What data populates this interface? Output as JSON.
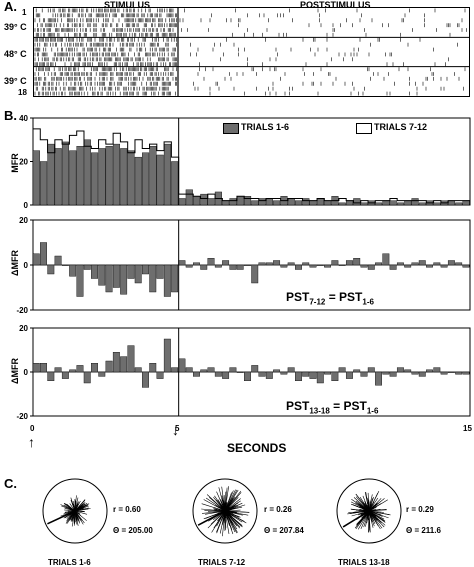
{
  "panel_a": {
    "letter": "A.",
    "stimulus_label": "STIMULUS",
    "poststimulus_label": "POSTSTIMULUS",
    "temp_labels": [
      "39° C",
      "48° C",
      "39° C"
    ],
    "trial_first": "1",
    "trial_last": "18"
  },
  "panel_b": {
    "letter": "B.",
    "xlabel": "SECONDS",
    "x_ticks": [
      "0",
      "5",
      "15"
    ],
    "legend": {
      "series1": "TRIALS 1-6",
      "series2": "TRIALS 7-12"
    }
  },
  "panel_c": {
    "letter": "C.",
    "polars": [
      {
        "label": "TRIALS 1-6",
        "r": "r = 0.60",
        "theta": "Θ = 205.00"
      },
      {
        "label": "TRIALS 7-12",
        "r": "r = 0.26",
        "theta": "Θ = 207.84"
      },
      {
        "label": "TRIALS 13-18",
        "r": "r = 0.29",
        "theta": "Θ = 211.6"
      }
    ]
  },
  "chart_data": [
    {
      "type": "bar",
      "ylabel": "MFR",
      "xlabel": "SECONDS",
      "xlim": [
        0,
        15
      ],
      "ylim": [
        0,
        40
      ],
      "y_ticks": [
        0,
        20,
        40
      ],
      "bins": 60,
      "series": [
        {
          "name": "TRIALS 1-6",
          "fill": "#6e6e6e",
          "values": [
            25,
            20,
            28,
            26,
            29,
            25,
            27,
            30,
            24,
            26,
            27,
            28,
            26,
            25,
            22,
            24,
            27,
            23,
            28,
            20,
            3,
            7,
            4,
            5,
            3,
            6,
            2,
            3,
            4,
            4,
            2,
            3,
            3,
            2,
            4,
            3,
            2,
            3,
            2,
            3,
            2,
            4,
            1,
            2,
            3,
            1,
            2,
            1,
            2,
            2,
            1,
            2,
            3,
            1,
            2,
            1,
            2,
            2,
            1,
            2
          ]
        },
        {
          "name": "TRIALS 7-12",
          "fill": "#ffffff",
          "values": [
            35,
            30,
            24,
            30,
            28,
            32,
            34,
            27,
            26,
            30,
            28,
            33,
            29,
            24,
            30,
            26,
            28,
            25,
            29,
            22,
            5,
            5,
            4,
            3,
            5,
            3,
            2,
            2,
            4,
            3,
            3,
            2,
            3,
            3,
            2,
            3,
            3,
            2,
            2,
            3,
            2,
            2,
            3,
            2,
            1,
            2,
            1,
            2,
            2,
            3,
            2,
            2,
            2,
            2,
            1,
            2,
            1,
            2,
            2,
            2
          ]
        }
      ]
    },
    {
      "type": "bar",
      "ylabel": "ΔMFR",
      "xlim": [
        0,
        15
      ],
      "ylim": [
        -20,
        20
      ],
      "y_ticks": [
        -20,
        0,
        20
      ],
      "annotation": {
        "main": "PST",
        "sub1": "7-12",
        "mid": " = PST",
        "sub2": "1-6"
      },
      "values": [
        5,
        10,
        -4,
        4,
        0,
        -5,
        -14,
        -2,
        -6,
        -9,
        -12,
        -10,
        -13,
        -6,
        -8,
        -4,
        -12,
        -6,
        -14,
        -12,
        2,
        -1,
        1,
        -2,
        3,
        -1,
        2,
        -2,
        -2,
        0,
        -8,
        1,
        1,
        2,
        -1,
        1,
        -2,
        1,
        -1,
        0,
        -1,
        2,
        0,
        2,
        3,
        -1,
        -2,
        1,
        5,
        -2,
        1,
        -1,
        1,
        2,
        -1,
        1,
        -1,
        2,
        1,
        -1
      ]
    },
    {
      "type": "bar",
      "ylabel": "ΔMFR",
      "xlim": [
        0,
        15
      ],
      "ylim": [
        -20,
        20
      ],
      "y_ticks": [
        -20,
        0,
        20
      ],
      "annotation": {
        "main": "PST",
        "sub1": "13-18",
        "mid": " = PST",
        "sub2": "1-6"
      },
      "values": [
        4,
        4,
        -4,
        2,
        -3,
        1,
        3,
        -5,
        4,
        -2,
        5,
        9,
        7,
        12,
        2,
        -7,
        4,
        -3,
        15,
        2,
        6,
        2,
        -2,
        1,
        2,
        -2,
        -3,
        2,
        0,
        -4,
        3,
        -2,
        -3,
        1,
        -1,
        2,
        -4,
        -2,
        -3,
        -5,
        -1,
        -4,
        2,
        -3,
        1,
        -2,
        2,
        -6,
        -1,
        -2,
        2,
        1,
        -1,
        -2,
        1,
        2,
        -1,
        0,
        -1,
        -1
      ]
    }
  ]
}
